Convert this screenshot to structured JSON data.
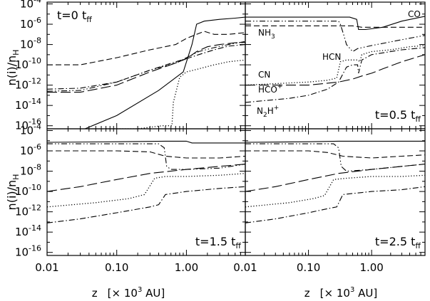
{
  "figure": {
    "ylabel": "n(i)/n",
    "ylabel_sub": "H",
    "xlabel": "z",
    "xlabel_unit": "[× 10",
    "xlabel_exp": "3",
    "xlabel_tail": " AU]"
  },
  "chart_data": [
    {
      "type": "line",
      "panel": "top-left",
      "time_label": "t=0",
      "time_unit": "t",
      "time_sub": "ff",
      "time_position": "top-left",
      "xscale": "log",
      "yscale": "log",
      "xlim": [
        0.01,
        7.0
      ],
      "ylim": [
        5e-17,
        0.00015
      ],
      "series": [
        {
          "style": "solid",
          "points": [
            [
              0.035,
              5e-17
            ],
            [
              0.1,
              1e-15
            ],
            [
              0.4,
              3e-13
            ],
            [
              0.9,
              2e-11
            ],
            [
              1.2,
              1e-08
            ],
            [
              1.4,
              1e-06
            ],
            [
              1.8,
              2e-06
            ],
            [
              3,
              3e-06
            ],
            [
              5,
              4e-06
            ],
            [
              7,
              5e-06
            ]
          ]
        },
        {
          "style": "dashed",
          "points": [
            [
              0.01,
              1e-10
            ],
            [
              0.03,
              1e-10
            ],
            [
              0.1,
              5e-10
            ],
            [
              0.3,
              3e-09
            ],
            [
              0.7,
              1e-08
            ],
            [
              1.0,
              4e-08
            ],
            [
              1.4,
              1e-07
            ],
            [
              1.8,
              2e-07
            ],
            [
              2.5,
              1e-07
            ],
            [
              4,
              1e-07
            ],
            [
              7,
              1.5e-07
            ]
          ]
        },
        {
          "style": "long-dash",
          "points": [
            [
              0.01,
              2e-13
            ],
            [
              0.03,
              2e-13
            ],
            [
              0.1,
              1e-12
            ],
            [
              0.3,
              2e-11
            ],
            [
              0.7,
              1.5e-10
            ],
            [
              1.0,
              4e-10
            ],
            [
              1.4,
              2e-09
            ],
            [
              2,
              6e-09
            ],
            [
              3,
              1e-08
            ],
            [
              5,
              1.5e-08
            ],
            [
              7,
              1.6e-08
            ]
          ]
        },
        {
          "style": "dotted",
          "points": [
            [
              0.07,
              5e-17
            ],
            [
              0.2,
              5e-17
            ],
            [
              0.45,
              1e-16
            ],
            [
              0.62,
              1e-16
            ],
            [
              0.65,
              2e-14
            ],
            [
              0.8,
              6e-12
            ],
            [
              1.0,
              2e-11
            ],
            [
              1.5,
              4e-11
            ],
            [
              2.5,
              1e-10
            ],
            [
              4,
              2e-10
            ],
            [
              7,
              3e-10
            ]
          ]
        },
        {
          "style": "dash-dot",
          "points": [
            [
              0.01,
              4e-13
            ],
            [
              0.03,
              5e-13
            ],
            [
              0.1,
              2e-12
            ],
            [
              0.3,
              3e-11
            ],
            [
              0.7,
              2e-10
            ],
            [
              1.0,
              4e-10
            ],
            [
              1.5,
              1e-09
            ],
            [
              2.5,
              3e-09
            ],
            [
              4,
              7e-09
            ],
            [
              7,
              1e-08
            ]
          ]
        },
        {
          "style": "dash-dot-dot",
          "points": [
            [
              0.01,
              2.5e-13
            ],
            [
              0.03,
              3e-13
            ],
            [
              0.1,
              2e-12
            ],
            [
              0.3,
              3e-11
            ],
            [
              0.7,
              1.5e-10
            ],
            [
              1.0,
              5e-10
            ],
            [
              1.5,
              2e-09
            ],
            [
              2.5,
              5e-09
            ],
            [
              4,
              1e-08
            ],
            [
              7,
              2e-08
            ]
          ]
        }
      ]
    },
    {
      "type": "line",
      "panel": "top-right",
      "time_label": "t=0.5",
      "time_unit": "t",
      "time_sub": "ff",
      "time_position": "bottom-right",
      "xscale": "log",
      "yscale": "log",
      "xlim": [
        0.01,
        7.0
      ],
      "ylim": [
        5e-17,
        0.00015
      ],
      "species_labels": [
        "CO",
        "NH",
        "HCN",
        "CN",
        "HCO",
        "N",
        "H"
      ],
      "label_sub": [
        "3",
        "2"
      ],
      "label_sup": [
        "+",
        "+"
      ],
      "series": [
        {
          "style": "solid",
          "points": [
            [
              0.01,
              5e-06
            ],
            [
              0.1,
              5e-06
            ],
            [
              0.45,
              5e-06
            ],
            [
              0.58,
              3e-06
            ],
            [
              0.62,
              3e-07
            ],
            [
              0.8,
              3e-07
            ],
            [
              1.5,
              5e-07
            ],
            [
              3,
              2e-06
            ],
            [
              7,
              6e-06
            ]
          ]
        },
        {
          "style": "dashed",
          "points": [
            [
              0.01,
              7e-07
            ],
            [
              0.3,
              7e-07
            ],
            [
              0.5,
              7e-07
            ],
            [
              0.7,
              5e-07
            ],
            [
              1.5,
              5e-07
            ],
            [
              7,
              5e-07
            ]
          ]
        },
        {
          "style": "dash-dot-dot",
          "points": [
            [
              0.01,
              2e-06
            ],
            [
              0.1,
              2e-06
            ],
            [
              0.3,
              2e-06
            ],
            [
              0.32,
              1e-06
            ],
            [
              0.36,
              1e-07
            ],
            [
              0.4,
              1e-08
            ],
            [
              0.5,
              2e-09
            ],
            [
              0.6,
              4e-09
            ],
            [
              1,
              8e-09
            ],
            [
              3,
              3e-08
            ],
            [
              7,
              8e-08
            ]
          ]
        },
        {
          "style": "long-dash",
          "points": [
            [
              0.01,
              1e-12
            ],
            [
              0.1,
              1e-12
            ],
            [
              0.3,
              2e-12
            ],
            [
              0.5,
              4e-12
            ],
            [
              0.7,
              8e-12
            ],
            [
              1.0,
              1.5e-11
            ],
            [
              1.5,
              4e-11
            ],
            [
              3,
              2e-10
            ],
            [
              7,
              1e-09
            ]
          ]
        },
        {
          "style": "dotted",
          "points": [
            [
              0.01,
              1e-12
            ],
            [
              0.1,
              2e-12
            ],
            [
              0.2,
              3e-12
            ],
            [
              0.28,
              5e-12
            ],
            [
              0.32,
              2e-10
            ],
            [
              0.4,
              3e-10
            ],
            [
              0.5,
              3e-10
            ],
            [
              0.6,
              3e-10
            ],
            [
              0.65,
              2e-10
            ],
            [
              0.7,
              1e-09
            ],
            [
              1,
              2e-09
            ],
            [
              2,
              3e-09
            ],
            [
              4,
              6e-09
            ],
            [
              7,
              8e-09
            ]
          ]
        },
        {
          "style": "dash-dot",
          "points": [
            [
              0.01,
              2e-14
            ],
            [
              0.05,
              5e-14
            ],
            [
              0.1,
              1e-13
            ],
            [
              0.2,
              4e-13
            ],
            [
              0.3,
              2e-12
            ],
            [
              0.4,
              6e-11
            ],
            [
              0.5,
              1e-10
            ],
            [
              0.6,
              1e-10
            ],
            [
              0.62,
              1.5e-11
            ],
            [
              0.7,
              3e-10
            ],
            [
              1,
              1e-09
            ],
            [
              3,
              3e-09
            ],
            [
              7,
              5e-09
            ]
          ]
        }
      ]
    },
    {
      "type": "line",
      "panel": "bottom-left",
      "time_label": "t=1.5",
      "time_unit": "t",
      "time_sub": "ff",
      "time_position": "bottom-right",
      "xscale": "log",
      "yscale": "log",
      "xlim": [
        0.01,
        7.0
      ],
      "ylim": [
        5e-17,
        0.00015
      ],
      "series": [
        {
          "style": "solid",
          "points": [
            [
              0.01,
              7e-06
            ],
            [
              0.1,
              8e-06
            ],
            [
              0.5,
              9e-06
            ],
            [
              1.0,
              9e-06
            ],
            [
              1.2,
              6e-06
            ],
            [
              2,
              6e-06
            ],
            [
              7,
              6e-06
            ]
          ]
        },
        {
          "style": "dash-dot-dot",
          "points": [
            [
              0.01,
              5e-06
            ],
            [
              0.1,
              5e-06
            ],
            [
              0.4,
              5e-06
            ],
            [
              0.48,
              2e-06
            ],
            [
              0.52,
              3e-08
            ],
            [
              0.6,
              1.5e-08
            ],
            [
              1,
              1.5e-08
            ],
            [
              3,
              2e-08
            ],
            [
              7,
              5e-08
            ]
          ]
        },
        {
          "style": "dashed",
          "points": [
            [
              0.01,
              1e-06
            ],
            [
              0.1,
              1e-06
            ],
            [
              0.3,
              8e-07
            ],
            [
              0.5,
              3e-07
            ],
            [
              1,
              2e-07
            ],
            [
              3,
              2e-07
            ],
            [
              7,
              3e-07
            ]
          ]
        },
        {
          "style": "long-dash",
          "points": [
            [
              0.01,
              1e-10
            ],
            [
              0.03,
              3e-10
            ],
            [
              0.1,
              1.5e-09
            ],
            [
              0.3,
              6e-09
            ],
            [
              1,
              1.5e-08
            ],
            [
              3,
              3e-08
            ],
            [
              7,
              5e-08
            ]
          ]
        },
        {
          "style": "dotted",
          "points": [
            [
              0.01,
              3e-12
            ],
            [
              0.05,
              8e-12
            ],
            [
              0.15,
              2e-11
            ],
            [
              0.25,
              5e-11
            ],
            [
              0.35,
              2e-09
            ],
            [
              0.5,
              3e-09
            ],
            [
              1,
              3e-09
            ],
            [
              3,
              4e-09
            ],
            [
              7,
              6e-09
            ]
          ]
        },
        {
          "style": "dash-dot",
          "points": [
            [
              0.01,
              8e-14
            ],
            [
              0.03,
              2e-13
            ],
            [
              0.1,
              8e-13
            ],
            [
              0.3,
              3e-12
            ],
            [
              0.4,
              5e-12
            ],
            [
              0.5,
              5e-11
            ],
            [
              1,
              1e-10
            ],
            [
              3,
              2e-10
            ],
            [
              7,
              3e-10
            ]
          ]
        }
      ]
    },
    {
      "type": "line",
      "panel": "bottom-right",
      "time_label": "t=2.5",
      "time_unit": "t",
      "time_sub": "ff",
      "time_position": "bottom-right",
      "xscale": "log",
      "yscale": "log",
      "xlim": [
        0.01,
        7.0
      ],
      "ylim": [
        5e-17,
        0.00015
      ],
      "series": [
        {
          "style": "solid",
          "points": [
            [
              0.01,
              7e-06
            ],
            [
              0.1,
              8e-06
            ],
            [
              0.3,
              9e-06
            ],
            [
              1,
              9e-06
            ],
            [
              3,
              9e-06
            ],
            [
              7,
              9e-06
            ]
          ]
        },
        {
          "style": "dash-dot-dot",
          "points": [
            [
              0.01,
              5e-06
            ],
            [
              0.1,
              5e-06
            ],
            [
              0.25,
              5e-06
            ],
            [
              0.3,
              2e-06
            ],
            [
              0.33,
              3e-08
            ],
            [
              0.4,
              1e-08
            ],
            [
              1,
              1.5e-08
            ],
            [
              3,
              3e-08
            ],
            [
              7,
              5e-08
            ]
          ]
        },
        {
          "style": "dashed",
          "points": [
            [
              0.01,
              1e-06
            ],
            [
              0.1,
              1e-06
            ],
            [
              0.2,
              7e-07
            ],
            [
              0.35,
              3e-07
            ],
            [
              1,
              2e-07
            ],
            [
              3,
              3e-07
            ],
            [
              7,
              4e-07
            ]
          ]
        },
        {
          "style": "long-dash",
          "points": [
            [
              0.01,
              1e-10
            ],
            [
              0.03,
              3e-10
            ],
            [
              0.1,
              1.5e-09
            ],
            [
              0.3,
              6e-09
            ],
            [
              1,
              1.5e-08
            ],
            [
              3,
              3e-08
            ],
            [
              7,
              5e-08
            ]
          ]
        },
        {
          "style": "dotted",
          "points": [
            [
              0.01,
              3e-12
            ],
            [
              0.05,
              8e-12
            ],
            [
              0.12,
              2e-11
            ],
            [
              0.18,
              4e-11
            ],
            [
              0.25,
              1.5e-09
            ],
            [
              0.4,
              2e-09
            ],
            [
              1,
              3e-09
            ],
            [
              3,
              3e-09
            ],
            [
              7,
              4e-09
            ]
          ]
        },
        {
          "style": "dash-dot",
          "points": [
            [
              0.01,
              8e-14
            ],
            [
              0.03,
              2e-13
            ],
            [
              0.1,
              8e-13
            ],
            [
              0.2,
              2e-12
            ],
            [
              0.28,
              3e-12
            ],
            [
              0.35,
              5e-11
            ],
            [
              1,
              1e-10
            ],
            [
              3,
              1.5e-10
            ],
            [
              7,
              3e-10
            ]
          ]
        }
      ]
    }
  ],
  "axes": {
    "y_ticks": [
      {
        "mantissa": "10",
        "exp": "-4",
        "value": 0.0001
      },
      {
        "mantissa": "10",
        "exp": "-6",
        "value": 1e-06
      },
      {
        "mantissa": "10",
        "exp": "-8",
        "value": 1e-08
      },
      {
        "mantissa": "10",
        "exp": "-10",
        "value": 1e-10
      },
      {
        "mantissa": "10",
        "exp": "-12",
        "value": 1e-12
      },
      {
        "mantissa": "10",
        "exp": "-14",
        "value": 1e-14
      },
      {
        "mantissa": "10",
        "exp": "-16",
        "value": 1e-16
      }
    ],
    "x_ticks": [
      {
        "label": "0.01",
        "value": 0.01
      },
      {
        "label": "0.10",
        "value": 0.1
      },
      {
        "label": "1.00",
        "value": 1.0
      }
    ]
  }
}
